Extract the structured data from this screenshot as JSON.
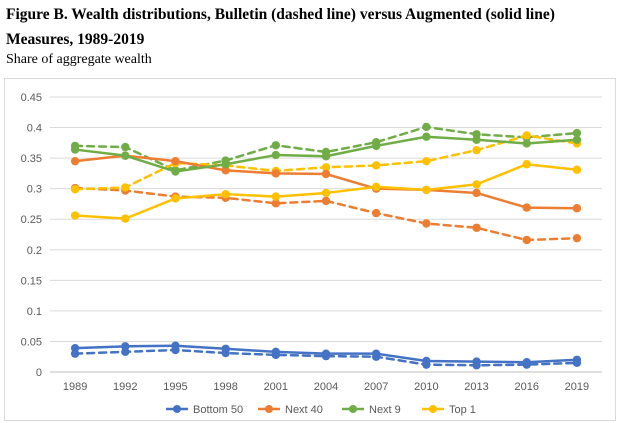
{
  "header": {
    "title": "Figure B. Wealth distributions, Bulletin (dashed line) versus Augmented (solid line) Measures, 1989-2019",
    "subtitle": "Share of aggregate wealth"
  },
  "chart_data": {
    "type": "line",
    "title": "Figure B. Wealth distributions, Bulletin (dashed line) versus Augmented (solid line) Measures, 1989-2019",
    "ylabel": "Share of aggregate wealth",
    "xlabel": "",
    "x": [
      "1989",
      "1992",
      "1995",
      "1998",
      "2001",
      "2004",
      "2007",
      "2010",
      "2013",
      "2016",
      "2019"
    ],
    "ylim": [
      0,
      0.45
    ],
    "yticks": [
      "0",
      "0.05",
      "0.1",
      "0.15",
      "0.2",
      "0.25",
      "0.3",
      "0.35",
      "0.4",
      "0.45"
    ],
    "grid": true,
    "legend_position": "bottom",
    "series": [
      {
        "name": "Bottom 50",
        "color": "#4472C4",
        "style": "solid",
        "values": [
          0.039,
          0.042,
          0.043,
          0.038,
          0.033,
          0.03,
          0.03,
          0.018,
          0.017,
          0.016,
          0.02
        ]
      },
      {
        "name": "Bottom 50",
        "color": "#4472C4",
        "style": "dashed",
        "legend": false,
        "values": [
          0.03,
          0.033,
          0.036,
          0.031,
          0.028,
          0.026,
          0.025,
          0.012,
          0.011,
          0.012,
          0.015
        ]
      },
      {
        "name": "Next 40",
        "color": "#ED7D31",
        "style": "solid",
        "values": [
          0.345,
          0.354,
          0.345,
          0.33,
          0.325,
          0.324,
          0.3,
          0.298,
          0.293,
          0.269,
          0.268
        ]
      },
      {
        "name": "Next 40",
        "color": "#ED7D31",
        "style": "dashed",
        "legend": false,
        "values": [
          0.301,
          0.297,
          0.287,
          0.285,
          0.276,
          0.28,
          0.26,
          0.243,
          0.236,
          0.216,
          0.219
        ]
      },
      {
        "name": "Next 9",
        "color": "#70AD47",
        "style": "solid",
        "values": [
          0.364,
          0.354,
          0.328,
          0.34,
          0.355,
          0.353,
          0.37,
          0.385,
          0.38,
          0.374,
          0.38
        ]
      },
      {
        "name": "Next 9",
        "color": "#70AD47",
        "style": "dashed",
        "legend": false,
        "values": [
          0.37,
          0.368,
          0.33,
          0.346,
          0.371,
          0.36,
          0.376,
          0.401,
          0.389,
          0.384,
          0.391
        ]
      },
      {
        "name": "Top 1",
        "color": "#FFC000",
        "style": "solid",
        "values": [
          0.256,
          0.251,
          0.284,
          0.291,
          0.287,
          0.293,
          0.303,
          0.298,
          0.307,
          0.34,
          0.331
        ]
      },
      {
        "name": "Top 1",
        "color": "#FFC000",
        "style": "dashed",
        "legend": false,
        "values": [
          0.299,
          0.302,
          0.342,
          0.338,
          0.329,
          0.335,
          0.338,
          0.345,
          0.363,
          0.387,
          0.374
        ]
      }
    ]
  }
}
